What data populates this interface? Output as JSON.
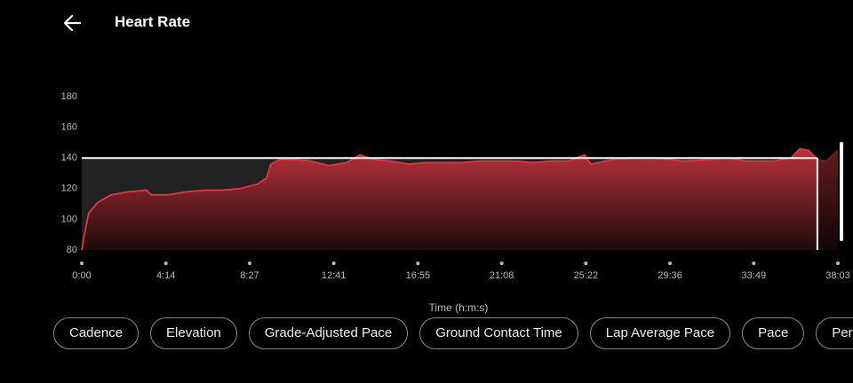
{
  "header": {
    "title": "Heart Rate"
  },
  "chart_data": {
    "type": "area",
    "x_label": "Time (h:m:s)",
    "xlim": [
      0,
      2283
    ],
    "xticks": [
      {
        "value": 0,
        "label": "0:00"
      },
      {
        "value": 254,
        "label": "4:14"
      },
      {
        "value": 507,
        "label": "8:27"
      },
      {
        "value": 761,
        "label": "12:41"
      },
      {
        "value": 1015,
        "label": "16:55"
      },
      {
        "value": 1268,
        "label": "21:08"
      },
      {
        "value": 1522,
        "label": "25:22"
      },
      {
        "value": 1776,
        "label": "29:36"
      },
      {
        "value": 2029,
        "label": "33:49"
      },
      {
        "value": 2283,
        "label": "38:03"
      }
    ],
    "ylim": [
      80,
      180
    ],
    "yticks": [
      80,
      100,
      120,
      140,
      160,
      180
    ],
    "reference_line": 140,
    "cursor_x": 2221,
    "series": [
      {
        "color": "#e3343f",
        "x": [
          0,
          8,
          21,
          48,
          89,
          143,
          196,
          209,
          263,
          317,
          370,
          424,
          478,
          531,
          558,
          571,
          598,
          639,
          692,
          746,
          800,
          840,
          880,
          934,
          987,
          1041,
          1095,
          1148,
          1202,
          1256,
          1309,
          1363,
          1416,
          1470,
          1518,
          1537,
          1604,
          1658,
          1738,
          1819,
          1899,
          1953,
          2007,
          2087,
          2141,
          2168,
          2195,
          2221,
          2248,
          2283
        ],
        "values": [
          80,
          90,
          104,
          111,
          116,
          118,
          119,
          116,
          116,
          118,
          119,
          119,
          120,
          123,
          127,
          136,
          139,
          139,
          138,
          135,
          137,
          142,
          139,
          138,
          136,
          137,
          137,
          137,
          138,
          138,
          138,
          137,
          138,
          138,
          142,
          136,
          139,
          140,
          140,
          138,
          139,
          140,
          138,
          138,
          140,
          146,
          145,
          139,
          138,
          145
        ]
      }
    ]
  },
  "chips": [
    "Cadence",
    "Elevation",
    "Grade-Adjusted Pace",
    "Ground Contact Time",
    "Lap Average Pace",
    "Pace",
    "Performance"
  ]
}
